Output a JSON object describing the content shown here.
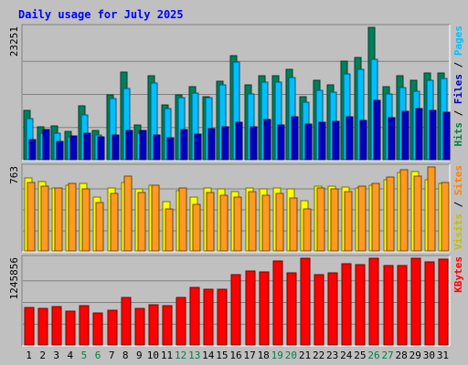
{
  "chart_data": {
    "type": "bar",
    "title": "Daily usage for July 2025",
    "categories": [
      "1",
      "2",
      "3",
      "4",
      "5",
      "6",
      "7",
      "8",
      "9",
      "10",
      "11",
      "12",
      "13",
      "14",
      "15",
      "16",
      "17",
      "18",
      "19",
      "20",
      "21",
      "22",
      "23",
      "24",
      "25",
      "26",
      "27",
      "28",
      "29",
      "30",
      "31"
    ],
    "weekend_days": [
      "5",
      "6",
      "12",
      "13",
      "19",
      "20",
      "26",
      "27"
    ],
    "panels": [
      {
        "id": "hits-panel",
        "ymax": 23251,
        "ymax_label": "23251",
        "right_labels": [
          {
            "text": "Hits",
            "color": "#008040"
          },
          {
            "text": " / ",
            "color": "#000000"
          },
          {
            "text": "Files",
            "color": "#0000c0"
          },
          {
            "text": " / ",
            "color": "#000000"
          },
          {
            "text": "Pages",
            "color": "#00c0ff"
          }
        ],
        "series": [
          {
            "name": "Hits",
            "color": "#00805a",
            "values": [
              8700,
              5800,
              5900,
              5000,
              9500,
              5200,
              11400,
              15400,
              6100,
              14700,
              9600,
              11400,
              12900,
              11100,
              13800,
              18300,
              13100,
              14700,
              14700,
              15900,
              11000,
              14000,
              13100,
              17300,
              17900,
              23251,
              12900,
              14800,
              13900,
              15300,
              15300
            ]
          },
          {
            "name": "Files",
            "color": "#00bfff",
            "values": [
              7200,
              4600,
              4600,
              4000,
              7900,
              4300,
              10700,
              12500,
              4600,
              13500,
              8900,
              10900,
              11700,
              10900,
              13200,
              17200,
              11500,
              13700,
              13700,
              14400,
              10100,
              12200,
              11900,
              15000,
              15900,
              17600,
              11500,
              12700,
              12100,
              13900,
              14200
            ]
          },
          {
            "name": "Pages",
            "color": "#0000c0",
            "values": [
              3500,
              5300,
              3200,
              4200,
              4600,
              4000,
              4300,
              5200,
              5100,
              4300,
              3800,
              5300,
              4500,
              5500,
              5800,
              6500,
              5800,
              7000,
              6100,
              7600,
              6300,
              6600,
              6700,
              7500,
              6900,
              10500,
              7300,
              8500,
              8900,
              8700,
              8400
            ]
          }
        ]
      },
      {
        "id": "visits-panel",
        "ymax": 763,
        "ymax_label": "763",
        "right_labels": [
          {
            "text": "Visits",
            "color": "#c0c000"
          },
          {
            "text": " / ",
            "color": "#000000"
          },
          {
            "text": "Sites",
            "color": "#ff8000"
          }
        ],
        "series": [
          {
            "name": "Visits",
            "color": "#ffff00",
            "values": [
              660,
              630,
              570,
              600,
              610,
              490,
              570,
              620,
              560,
              600,
              450,
              550,
              490,
              570,
              560,
              540,
              570,
              560,
              570,
              560,
              460,
              590,
              590,
              580,
              570,
              600,
              650,
              710,
              720,
              650,
              610
            ]
          },
          {
            "name": "Sites",
            "color": "#ff9a20",
            "values": [
              620,
              590,
              570,
              610,
              560,
              440,
              520,
              680,
              530,
              600,
              380,
              570,
              420,
              530,
              510,
              490,
              540,
              510,
              520,
              480,
              380,
              570,
              560,
              540,
              590,
              610,
              670,
              740,
              680,
              763,
              620
            ]
          }
        ]
      },
      {
        "id": "kbytes-panel",
        "ymax": 1245856,
        "ymax_label": "1245856",
        "right_labels": [
          {
            "text": "KBytes",
            "color": "#ff0000"
          }
        ],
        "series": [
          {
            "name": "KBytes",
            "color": "#ff0000",
            "values": [
              540000,
              530000,
              545000,
              490000,
              560000,
              460000,
              500000,
              680000,
              520000,
              580000,
              560000,
              680000,
              830000,
              800000,
              800000,
              1010000,
              1060000,
              1050000,
              1210000,
              1040000,
              1240000,
              1010000,
              1030000,
              1170000,
              1150000,
              1245856,
              1140000,
              1140000,
              1245856,
              1190000,
              1230000
            ]
          }
        ]
      }
    ]
  }
}
